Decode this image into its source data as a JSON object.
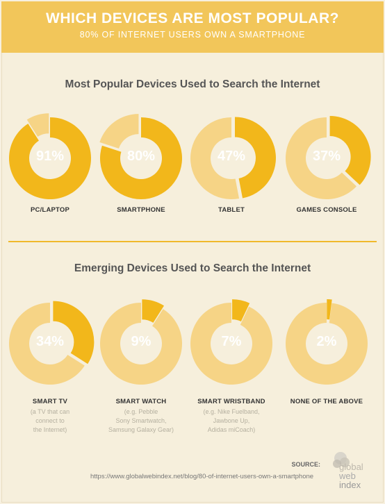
{
  "header": {
    "title": "WHICH DEVICES ARE MOST POPULAR?",
    "subtitle": "80% OF INTERNET USERS OWN A SMARTPHONE"
  },
  "sections": {
    "popular": {
      "title": "Most Popular Devices Used to Search the Internet"
    },
    "emerging": {
      "title": "Emerging Devices Used to Search the Internet"
    }
  },
  "colors": {
    "accent": "#f2b71b",
    "track": "#f6d486",
    "header": "#f2c65a",
    "background": "#f6efdc"
  },
  "chart_data": [
    {
      "type": "pie",
      "title": "Most Popular Devices Used to Search the Internet",
      "categories": [
        "PC/LAPTOP",
        "SMARTPHONE",
        "TABLET",
        "GAMES CONSOLE"
      ],
      "values": [
        91,
        80,
        47,
        37
      ],
      "labels": [
        "91%",
        "80%",
        "47%",
        "37%"
      ],
      "sublabels": [
        "",
        "",
        "",
        ""
      ]
    },
    {
      "type": "pie",
      "title": "Emerging Devices Used to Search the Internet",
      "categories": [
        "SMART TV",
        "SMART WATCH",
        "SMART WRISTBAND",
        "NONE OF THE ABOVE"
      ],
      "values": [
        34,
        9,
        7,
        2
      ],
      "labels": [
        "34%",
        "9%",
        "7%",
        "2%"
      ],
      "sublabels": [
        "(a TV that can\nconnect to\nthe Internet)",
        "(e.g. Pebble\nSony Smartwatch,\nSamsung Galaxy Gear)",
        "(e.g. Nike Fuelband,\nJawbone Up,\nAdidas miCoach)",
        ""
      ]
    }
  ],
  "footer": {
    "source_label": "SOURCE:",
    "url": "https://www.globalwebindex.net/blog/80-of-internet-users-own-a-smartphone",
    "logo_words": [
      "global",
      "web",
      "index"
    ]
  }
}
